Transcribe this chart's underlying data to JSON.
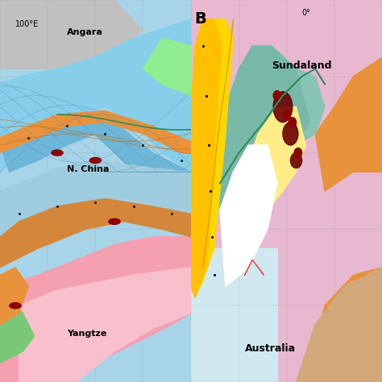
{
  "title_b": "B",
  "label_100E": "100°E",
  "label_0deg": "0°",
  "label_angara": "Angara",
  "label_nchina": "N. China",
  "label_yangtze": "Yangtze",
  "label_sundaland": "Sundaland",
  "label_australia": "Australia",
  "fig_width": 4.74,
  "fig_height": 4.74,
  "dpi": 100,
  "bg_color": "#ffffff",
  "left_bg": "#add8e6",
  "panel_divider": 0.5,
  "colors": {
    "light_blue": "#87CEEB",
    "medium_blue": "#6BAED6",
    "dark_blue": "#2171B5",
    "gray": "#B0B0B0",
    "light_gray": "#D3D3D3",
    "orange": "#E8923C",
    "dark_orange": "#CC6600",
    "pink": "#FFB6C1",
    "light_pink": "#FADADD",
    "green": "#90EE90",
    "dark_green": "#2E8B57",
    "teal": "#80C4B7",
    "yellow": "#FFD700",
    "yellow_green": "#ADFF2F",
    "light_yellow": "#FFFFE0",
    "dark_red": "#8B0000",
    "maroon": "#800000",
    "white": "#FFFFFF",
    "tan": "#D2B48C",
    "peach": "#FFDAB9"
  }
}
